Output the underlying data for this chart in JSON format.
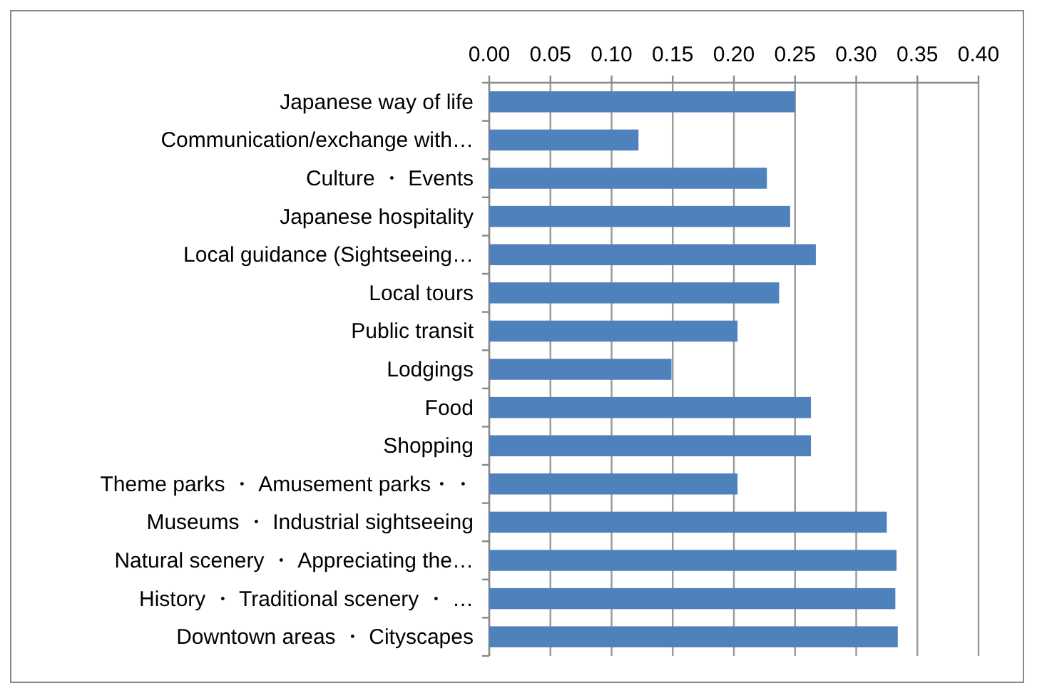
{
  "chart_data": {
    "type": "bar",
    "orientation": "horizontal",
    "categories": [
      "Japanese way of life",
      "Communication/exchange with…",
      "Culture ・ Events",
      "Japanese hospitality",
      "Local guidance (Sightseeing…",
      "Local tours",
      "Public transit",
      "Lodgings",
      "Food",
      "Shopping",
      "Theme parks ・ Amusement parks・・",
      "Museums ・ Industrial sightseeing",
      "Natural scenery ・ Appreciating the…",
      "History ・ Traditional scenery ・ …",
      "Downtown areas ・ Cityscapes"
    ],
    "values": [
      0.25,
      0.122,
      0.227,
      0.246,
      0.267,
      0.237,
      0.203,
      0.149,
      0.263,
      0.263,
      0.203,
      0.325,
      0.333,
      0.332,
      0.334
    ],
    "color": "#4f81bd",
    "xlim": [
      0,
      0.4
    ],
    "xticks": [
      {
        "value": 0,
        "label": "0.00"
      },
      {
        "value": 0.05,
        "label": "0.05"
      },
      {
        "value": 0.1,
        "label": "0.10"
      },
      {
        "value": 0.15,
        "label": "0.15"
      },
      {
        "value": 0.2,
        "label": "0.20"
      },
      {
        "value": 0.25,
        "label": "0.25"
      },
      {
        "value": 0.3,
        "label": "0.30"
      },
      {
        "value": 0.35,
        "label": "0.35"
      },
      {
        "value": 0.4,
        "label": "0.40"
      }
    ],
    "grid": "x"
  }
}
